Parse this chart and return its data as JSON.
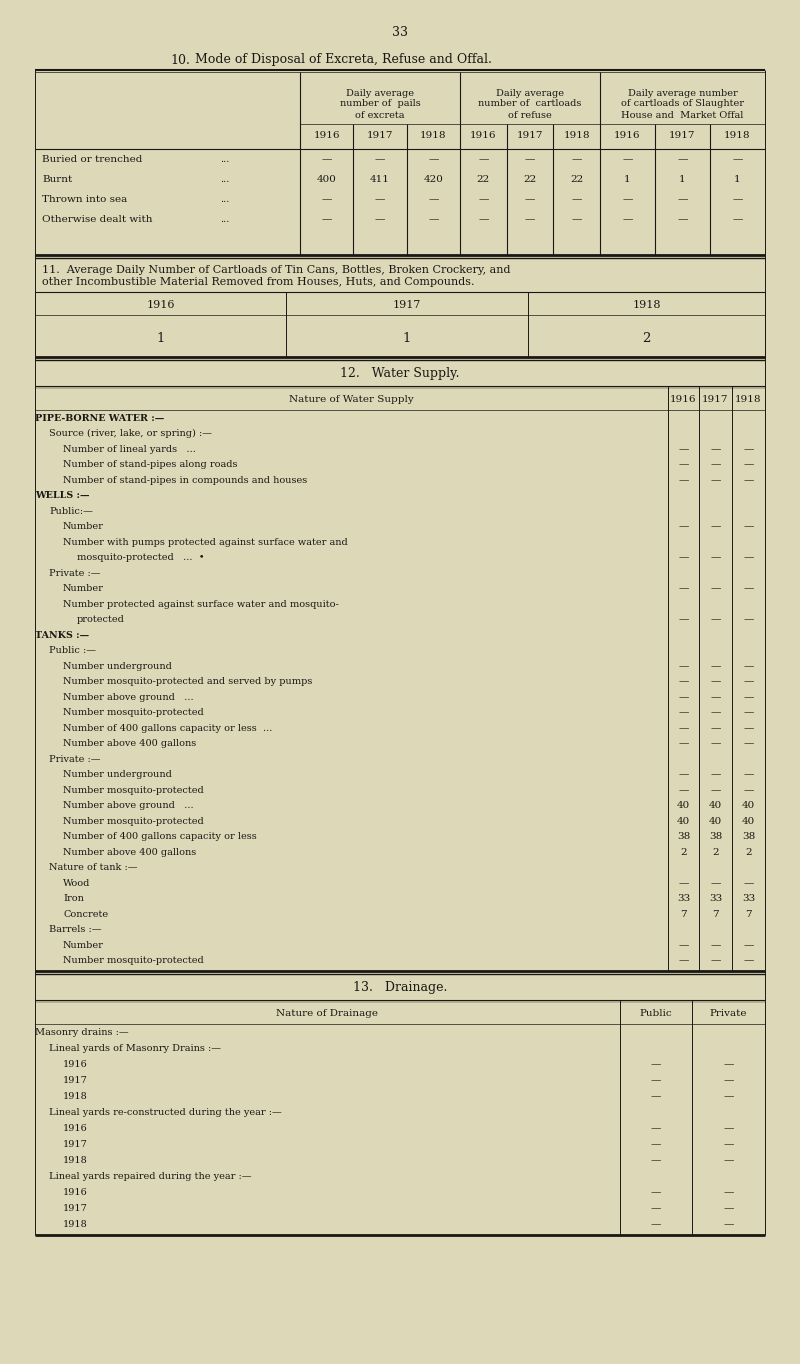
{
  "bg_color": "#ddd8b8",
  "text_color": "#1a1815",
  "line_color": "#1a1815",
  "page_number": "33",
  "section10_title_num": "10.",
  "section10_title_text": "Mode of Disposal of Excreta, Refuse and Offal.",
  "table10_col_headers": [
    "Daily average\nnumber of  pails\nof excreta",
    "Daily average\nnumber of  cartloads\nof refuse",
    "Daily average number\nof cartloads of Slaughter\nHouse and  Market Offal"
  ],
  "table10_years": [
    "1916",
    "1917",
    "1918"
  ],
  "table10_rows": [
    [
      "Buried or trenched",
      "...",
      "—",
      "—",
      "—",
      "—",
      "—",
      "—",
      "—",
      "—",
      "—"
    ],
    [
      "Burnt",
      "...",
      "400",
      "411",
      "420",
      "22",
      "22",
      "22",
      "1",
      "1",
      "1"
    ],
    [
      "Thrown into sea",
      "...",
      "—",
      "—",
      "—",
      "—",
      "—",
      "—",
      "—",
      "—",
      "—"
    ],
    [
      "Otherwise dealt with",
      "...",
      "—",
      "—",
      "—",
      "—",
      "—",
      "—",
      "—",
      "—",
      "—"
    ]
  ],
  "section11_title": "11.  Average Daily Number of Cartloads of Tin Cans, Bottles, Broken Crockery, and\n        other Incombustible Material Removed from Houses, Huts, and Compounds.",
  "table11_years": [
    "1916",
    "1917",
    "1918"
  ],
  "table11_values": [
    "1",
    "1",
    "2"
  ],
  "section12_title": "12.   Water Supply.",
  "table12_header": [
    "Nature of Water Supply",
    "1916",
    "1917",
    "1918"
  ],
  "table12_rows": [
    {
      "label": "Pipe-borne water :—",
      "indent": 0,
      "smallcaps": true,
      "vals": [
        "",
        "",
        ""
      ]
    },
    {
      "label": "Source (river, lake, or spring) :—",
      "indent": 1,
      "smallcaps": false,
      "vals": [
        "",
        "",
        ""
      ]
    },
    {
      "label": "Number of lineal yards   ...",
      "indent": 2,
      "smallcaps": false,
      "vals": [
        "—",
        "—",
        "—"
      ]
    },
    {
      "label": "Number of stand-pipes along roads",
      "indent": 2,
      "smallcaps": false,
      "vals": [
        "—",
        "—",
        "—"
      ]
    },
    {
      "label": "Number of stand-pipes in compounds and houses",
      "indent": 2,
      "smallcaps": false,
      "vals": [
        "—",
        "—",
        "—"
      ]
    },
    {
      "label": "Wells :—",
      "indent": 0,
      "smallcaps": true,
      "vals": [
        "",
        "",
        ""
      ]
    },
    {
      "label": "Public:—",
      "indent": 1,
      "smallcaps": false,
      "vals": [
        "",
        "",
        ""
      ]
    },
    {
      "label": "Number",
      "indent": 2,
      "smallcaps": false,
      "vals": [
        "—",
        "—",
        "—"
      ]
    },
    {
      "label": "Number with pumps protected against surface water and",
      "indent": 2,
      "smallcaps": false,
      "vals": [
        "",
        "",
        ""
      ]
    },
    {
      "label": "mosquito-protected   ...  •",
      "indent": 3,
      "smallcaps": false,
      "vals": [
        "—",
        "—",
        "—"
      ]
    },
    {
      "label": "Private :—",
      "indent": 1,
      "smallcaps": false,
      "vals": [
        "",
        "",
        ""
      ]
    },
    {
      "label": "Number",
      "indent": 2,
      "smallcaps": false,
      "vals": [
        "—",
        "—",
        "—"
      ]
    },
    {
      "label": "Number protected against surface water and mosquito-",
      "indent": 2,
      "smallcaps": false,
      "vals": [
        "",
        "",
        ""
      ]
    },
    {
      "label": "protected",
      "indent": 3,
      "smallcaps": false,
      "vals": [
        "—",
        "—",
        "—"
      ]
    },
    {
      "label": "Tanks :—",
      "indent": 0,
      "smallcaps": true,
      "vals": [
        "",
        "",
        ""
      ]
    },
    {
      "label": "Public :—",
      "indent": 1,
      "smallcaps": false,
      "vals": [
        "",
        "",
        ""
      ]
    },
    {
      "label": "Number underground",
      "indent": 2,
      "smallcaps": false,
      "vals": [
        "—",
        "—",
        "—"
      ]
    },
    {
      "label": "Number mosquito-protected and served by pumps",
      "indent": 2,
      "smallcaps": false,
      "vals": [
        "—",
        "—",
        "—"
      ]
    },
    {
      "label": "Number above ground   ...",
      "indent": 2,
      "smallcaps": false,
      "vals": [
        "—",
        "—",
        "—"
      ]
    },
    {
      "label": "Number mosquito-protected",
      "indent": 2,
      "smallcaps": false,
      "vals": [
        "—",
        "—",
        "—"
      ]
    },
    {
      "label": "Number of 400 gallons capacity or less  ...",
      "indent": 2,
      "smallcaps": false,
      "vals": [
        "—",
        "—",
        "—"
      ]
    },
    {
      "label": "Number above 400 gallons",
      "indent": 2,
      "smallcaps": false,
      "vals": [
        "—",
        "—",
        "—"
      ]
    },
    {
      "label": "Private :—",
      "indent": 1,
      "smallcaps": false,
      "vals": [
        "",
        "",
        ""
      ]
    },
    {
      "label": "Number underground",
      "indent": 2,
      "smallcaps": false,
      "vals": [
        "—",
        "—",
        "—"
      ]
    },
    {
      "label": "Number mosquito-protected",
      "indent": 2,
      "smallcaps": false,
      "vals": [
        "—",
        "—",
        "—"
      ]
    },
    {
      "label": "Number above ground   ...",
      "indent": 2,
      "smallcaps": false,
      "vals": [
        "40",
        "40",
        "40"
      ]
    },
    {
      "label": "Number mosquito-protected",
      "indent": 2,
      "smallcaps": false,
      "vals": [
        "40",
        "40",
        "40"
      ]
    },
    {
      "label": "Number of 400 gallons capacity or less",
      "indent": 2,
      "smallcaps": false,
      "vals": [
        "38",
        "38",
        "38"
      ]
    },
    {
      "label": "Number above 400 gallons",
      "indent": 2,
      "smallcaps": false,
      "vals": [
        "2",
        "2",
        "2"
      ]
    },
    {
      "label": "Nature of tank :—",
      "indent": 1,
      "smallcaps": false,
      "vals": [
        "",
        "",
        ""
      ]
    },
    {
      "label": "Wood",
      "indent": 2,
      "smallcaps": false,
      "vals": [
        "—",
        "—",
        "—"
      ]
    },
    {
      "label": "Iron",
      "indent": 2,
      "smallcaps": false,
      "vals": [
        "33",
        "33",
        "33"
      ]
    },
    {
      "label": "Concrete",
      "indent": 2,
      "smallcaps": false,
      "vals": [
        "7",
        "7",
        "7"
      ]
    },
    {
      "label": "Barrels :—",
      "indent": 1,
      "smallcaps": false,
      "vals": [
        "",
        "",
        ""
      ]
    },
    {
      "label": "Number",
      "indent": 2,
      "smallcaps": false,
      "vals": [
        "—",
        "—",
        "—"
      ]
    },
    {
      "label": "Number mosquito-protected",
      "indent": 2,
      "smallcaps": false,
      "vals": [
        "—",
        "—",
        "—"
      ]
    }
  ],
  "section13_title": "13.   Drainage.",
  "table13_header": [
    "Nature of Drainage",
    "Public",
    "Private"
  ],
  "table13_rows": [
    {
      "label": "Masonry drains :—",
      "indent": 0,
      "vals": [
        "",
        ""
      ]
    },
    {
      "label": "Lineal yards of Masonry Drains :—",
      "indent": 1,
      "vals": [
        "",
        ""
      ]
    },
    {
      "label": "1916",
      "indent": 2,
      "vals": [
        "—",
        "—"
      ]
    },
    {
      "label": "1917",
      "indent": 2,
      "vals": [
        "—",
        "—"
      ]
    },
    {
      "label": "1918",
      "indent": 2,
      "vals": [
        "—",
        "—"
      ]
    },
    {
      "label": "Lineal yards re-constructed during the year :—",
      "indent": 1,
      "vals": [
        "",
        ""
      ]
    },
    {
      "label": "1916",
      "indent": 2,
      "vals": [
        "—",
        "—"
      ]
    },
    {
      "label": "1917",
      "indent": 2,
      "vals": [
        "—",
        "—"
      ]
    },
    {
      "label": "1918",
      "indent": 2,
      "vals": [
        "—",
        "—"
      ]
    },
    {
      "label": "Lineal yards repaired during the year :—",
      "indent": 1,
      "vals": [
        "",
        ""
      ]
    },
    {
      "label": "1916",
      "indent": 2,
      "vals": [
        "—",
        "—"
      ]
    },
    {
      "label": "1917",
      "indent": 2,
      "vals": [
        "—",
        "—"
      ]
    },
    {
      "label": "1918",
      "indent": 2,
      "vals": [
        "—",
        "—"
      ]
    }
  ]
}
